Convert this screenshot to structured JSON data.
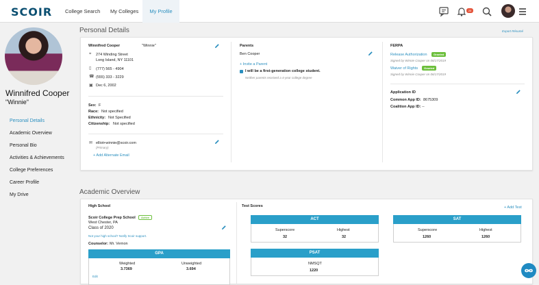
{
  "app": {
    "logo": "SCOIR"
  },
  "nav": {
    "items": [
      "College Search",
      "My Colleges",
      "My Profile"
    ],
    "active": "My Profile",
    "notification_count": "20"
  },
  "profile": {
    "name": "Winnifred Cooper",
    "nickname": "\"Winnie\""
  },
  "sidebar": {
    "items": [
      "Personal Details",
      "Academic Overview",
      "Personal Bio",
      "Activities & Achievements",
      "College Preferences",
      "Career Profile",
      "My Drive"
    ]
  },
  "personal": {
    "section_title": "Personal Details",
    "export_link": "Export Résumé",
    "full_name": "Winnifred Cooper",
    "nick": "\"Winnie\"",
    "address1": "274 Winding Street",
    "address2": "Long Island, NY 11101",
    "phone1": "(777) 565 - 4904",
    "phone2": "(555) 333 - 3229",
    "dob": "Dec 6, 2002",
    "sex_label": "Sex:",
    "sex": "F",
    "race_label": "Race:",
    "race": "Not specified",
    "ethnicity_label": "Ethnicity:",
    "ethnicity": "Not Specified",
    "citizenship_label": "Citizenship:",
    "citizenship": "Not specified",
    "email": "elliot+winnie@scoir.com",
    "email_note": "(Primary)",
    "add_email": "+ Add Alternate Email"
  },
  "parents": {
    "title": "Parents",
    "name": "Ben Cooper",
    "invite": "+ Invite a Parent",
    "first_gen": "I will be a first-generation college student.",
    "first_gen_note": "Neither parents received a 4-year college degree"
  },
  "ferpa": {
    "title": "FERPA",
    "release": "Release Authorization",
    "release_badge": "Granted",
    "release_sig": "Signed by Winnie Cooper on 06/17/2019",
    "waiver": "Waiver of Rights",
    "waiver_badge": "Granted",
    "waiver_sig": "Signed by Winnie Cooper on 06/17/2019"
  },
  "application": {
    "title": "Application ID",
    "common_label": "Common App ID:",
    "common": "8675309",
    "coalition_label": "Coalition App ID:",
    "coalition": "--"
  },
  "academic": {
    "section_title": "Academic Overview",
    "hs_title": "High School",
    "school": "Scoir College Prep School",
    "status": "Active",
    "city": "West Chester, PA",
    "class": "Class of 2020",
    "not_school": "Not your high school? Notify Scoir support.",
    "counselor_label": "Counselor:",
    "counselor": "Mr. Vernon",
    "gpa_title": "GPA",
    "weighted_label": "Weighted",
    "weighted": "3.7369",
    "unweighted_label": "Unweighted",
    "unweighted": "3.694",
    "edit": "Edit",
    "test_title": "Test Scores",
    "add_test": "+ Add Test",
    "act": {
      "title": "ACT",
      "super_label": "Superscore",
      "super": "32",
      "high_label": "Highest",
      "high": "32"
    },
    "sat": {
      "title": "SAT",
      "super_label": "Superscore",
      "super": "1260",
      "high_label": "Highest",
      "high": "1260"
    },
    "psat": {
      "title": "PSAT",
      "nmsqt_label": "NMSQT",
      "nmsqt": "1220"
    }
  }
}
